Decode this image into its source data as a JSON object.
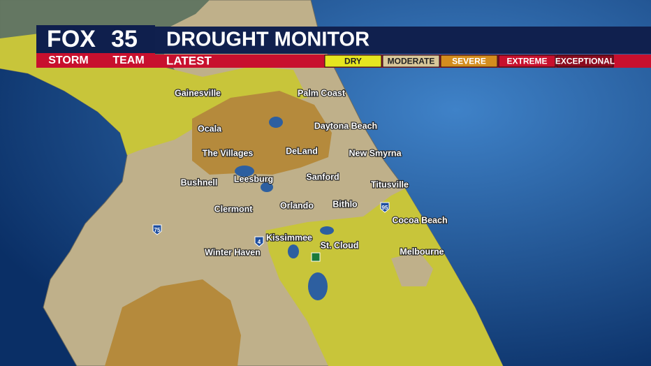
{
  "header": {
    "logo_brand": "FOX",
    "logo_channel": "35",
    "logo_team_1": "STORM",
    "logo_team_2": "TEAM",
    "title": "DROUGHT MONITOR",
    "subtitle": "LATEST"
  },
  "legend": [
    "DRY",
    "MODERATE",
    "SEVERE",
    "EXTREME",
    "EXCEPTIONAL"
  ],
  "cities": [
    "Gainesville",
    "Palm Coast",
    "Ocala",
    "Daytona Beach",
    "The Villages",
    "DeLand",
    "New Smyrna",
    "Bushnell",
    "Leesburg",
    "Sanford",
    "Titusville",
    "Clermont",
    "Orlando",
    "Bithlo",
    "Cocoa Beach",
    "Kissimmee",
    "St. Cloud",
    "Winter Haven",
    "Melbourne"
  ],
  "highways": [
    "75",
    "4",
    "95"
  ]
}
